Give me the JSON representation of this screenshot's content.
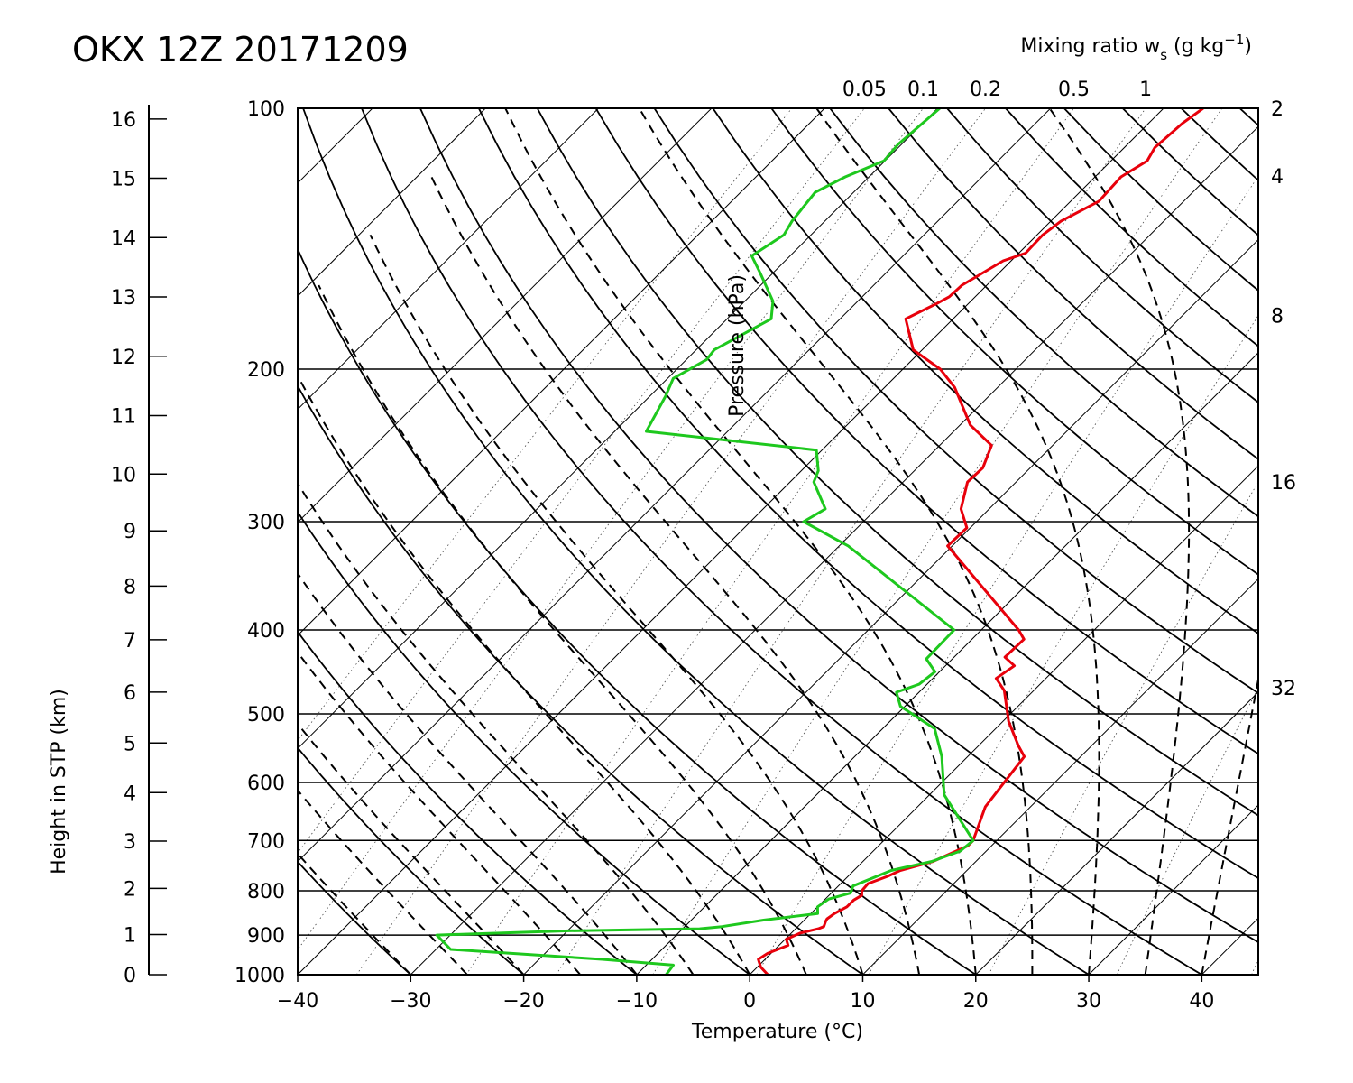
{
  "chart_data": {
    "type": "line",
    "title": "OKX 12Z 20171209",
    "xlabel": "Temperature (°C)",
    "ylabel": "Pressure (hPa)",
    "height_label": "Height in STP (km)",
    "mixing_label": "Mixing ratio w",
    "mixing_label_sub": "s",
    "mixing_label_units": " (g kg",
    "mixing_label_sup": "−1",
    "mixing_label_close": ")",
    "xlim": [
      -40,
      45
    ],
    "ylim": [
      1000,
      100
    ],
    "log_pressure_axis": true,
    "skew_degrees": 45,
    "x_ticks": [
      "−40",
      "−30",
      "−20",
      "−10",
      "0",
      "10",
      "20",
      "30",
      "40"
    ],
    "x_tick_values": [
      -40,
      -30,
      -20,
      -10,
      0,
      10,
      20,
      30,
      40
    ],
    "pressure_ticks": [
      "1000",
      "900",
      "800",
      "700",
      "600",
      "500",
      "400",
      "300",
      "200",
      "100"
    ],
    "pressure_tick_values": [
      1000,
      900,
      800,
      700,
      600,
      500,
      400,
      300,
      200,
      100
    ],
    "height_ticks": [
      "0",
      "1",
      "2",
      "3",
      "4",
      "5",
      "6",
      "7",
      "8",
      "9",
      "10",
      "11",
      "12",
      "13",
      "14",
      "15",
      "16"
    ],
    "height_tick_values": [
      0,
      1,
      2,
      3,
      4,
      5,
      6,
      7,
      8,
      9,
      10,
      11,
      12,
      13,
      14,
      15,
      16
    ],
    "mixing_ratio_top_labels": [
      "0.05",
      "0.1",
      "0.2",
      "0.5",
      "1"
    ],
    "mixing_ratio_top_values": [
      0.05,
      0.1,
      0.2,
      0.5,
      1
    ],
    "mixing_ratio_right_labels": [
      "2",
      "4",
      "8",
      "16",
      "32"
    ],
    "mixing_ratio_right_values": [
      2,
      4,
      8,
      16,
      32
    ],
    "colors": {
      "temperature": "#e8000b",
      "dewpoint": "#1ec81e",
      "grid": "#000000"
    },
    "series": [
      {
        "name": "temperature",
        "points": [
          [
            1000,
            1.6
          ],
          [
            980,
            0.3
          ],
          [
            960,
            -0.6
          ],
          [
            945,
            -0.3
          ],
          [
            925,
            0.8
          ],
          [
            910,
            0.1
          ],
          [
            895,
            0.8
          ],
          [
            885,
            2.0
          ],
          [
            880,
            2.3
          ],
          [
            868,
            2.0
          ],
          [
            862,
            1.9
          ],
          [
            850,
            2.1
          ],
          [
            835,
            2.6
          ],
          [
            820,
            2.6
          ],
          [
            810,
            2.9
          ],
          [
            800,
            2.5
          ],
          [
            785,
            2.4
          ],
          [
            770,
            3.5
          ],
          [
            758,
            4.1
          ],
          [
            740,
            6.2
          ],
          [
            710,
            7.9
          ],
          [
            700,
            7.9
          ],
          [
            640,
            6.0
          ],
          [
            560,
            5.0
          ],
          [
            545,
            3.6
          ],
          [
            510,
            0.5
          ],
          [
            470,
            -2.6
          ],
          [
            455,
            -4.4
          ],
          [
            440,
            -3.9
          ],
          [
            430,
            -5.5
          ],
          [
            410,
            -5.4
          ],
          [
            400,
            -6.7
          ],
          [
            320,
            -20.4
          ],
          [
            305,
            -20.3
          ],
          [
            290,
            -22.5
          ],
          [
            270,
            -24.3
          ],
          [
            260,
            -24.2
          ],
          [
            245,
            -25.4
          ],
          [
            232,
            -29.1
          ],
          [
            210,
            -33.8
          ],
          [
            200,
            -36.7
          ],
          [
            190,
            -40.8
          ],
          [
            175,
            -44.2
          ],
          [
            168,
            -42.8
          ],
          [
            165,
            -42.3
          ],
          [
            160,
            -42.2
          ],
          [
            150,
            -40.7
          ],
          [
            147,
            -39.4
          ],
          [
            140,
            -39.5
          ],
          [
            135,
            -39.1
          ],
          [
            128,
            -37.5
          ],
          [
            120,
            -37.7
          ],
          [
            115,
            -36.8
          ],
          [
            111,
            -37.3
          ],
          [
            104,
            -37.0
          ],
          [
            100,
            -36.5
          ]
        ]
      },
      {
        "name": "dewpoint",
        "points": [
          [
            1000,
            -7.4
          ],
          [
            975,
            -7.6
          ],
          [
            960,
            -14.4
          ],
          [
            935,
            -28.7
          ],
          [
            900,
            -31.2
          ],
          [
            890,
            -19.9
          ],
          [
            885,
            -8.5
          ],
          [
            880,
            -6.7
          ],
          [
            865,
            -3.6
          ],
          [
            850,
            0.6
          ],
          [
            835,
            0.0
          ],
          [
            818,
            0.3
          ],
          [
            805,
            1.7
          ],
          [
            790,
            1.3
          ],
          [
            758,
            3.3
          ],
          [
            740,
            6.1
          ],
          [
            720,
            7.7
          ],
          [
            700,
            7.9
          ],
          [
            620,
            1.3
          ],
          [
            560,
            -2.3
          ],
          [
            520,
            -5.4
          ],
          [
            490,
            -10.4
          ],
          [
            472,
            -12.0
          ],
          [
            462,
            -10.7
          ],
          [
            447,
            -10.4
          ],
          [
            432,
            -12.3
          ],
          [
            400,
            -12.4
          ],
          [
            320,
            -29.2
          ],
          [
            300,
            -35.3
          ],
          [
            290,
            -34.5
          ],
          [
            270,
            -37.9
          ],
          [
            262,
            -38.5
          ],
          [
            248,
            -40.5
          ],
          [
            236,
            -57.2
          ],
          [
            215,
            -58.6
          ],
          [
            205,
            -59.5
          ],
          [
            195,
            -58.2
          ],
          [
            190,
            -58.4
          ],
          [
            175,
            -56.1
          ],
          [
            167,
            -57.5
          ],
          [
            155,
            -61.1
          ],
          [
            148,
            -63.4
          ],
          [
            140,
            -62.4
          ],
          [
            135,
            -62.9
          ],
          [
            125,
            -63.4
          ],
          [
            120,
            -62.1
          ],
          [
            115,
            -60.1
          ],
          [
            110,
            -60.3
          ],
          [
            100,
            -59.8
          ]
        ]
      }
    ]
  }
}
